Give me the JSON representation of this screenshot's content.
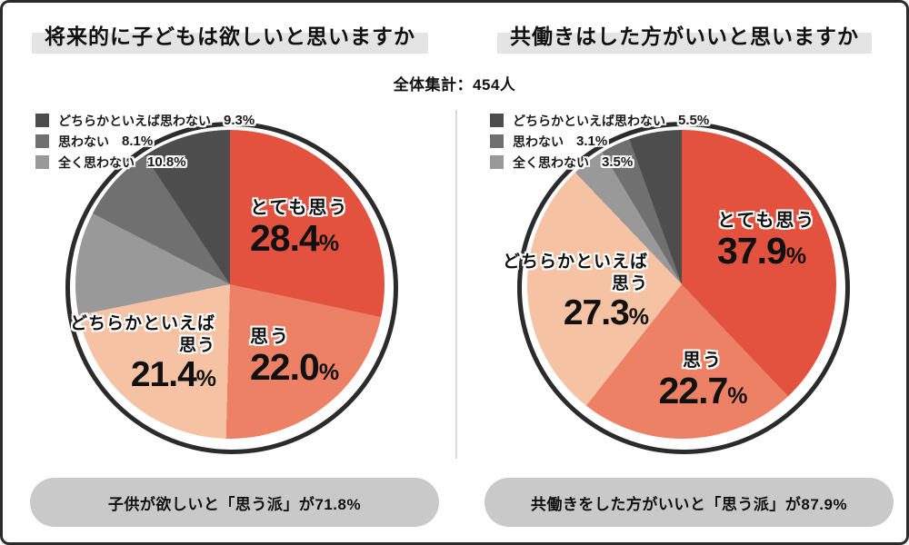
{
  "percent_sign": "%",
  "total_label": "全体集計：454人",
  "colors": {
    "red": "#e3523e",
    "salmon": "#ec8166",
    "peach": "#f5c2a3",
    "gray_light": "#999999",
    "gray_mid": "#707070",
    "gray_dark": "#4d4d4d",
    "banner_bg": "#c9c9c9",
    "title_highlight": "#e4e4e4",
    "frame_border": "#2b2b2b"
  },
  "panels": [
    {
      "title": "将来的に子どもは欲しいと思いますか",
      "legend": [
        {
          "label": "どちらかといえば思わない",
          "value": "9.3%",
          "color": "#4d4d4d"
        },
        {
          "label": "思わない",
          "value": "8.1%",
          "color": "#707070"
        },
        {
          "label": "全く思わない",
          "value": "10.8%",
          "color": "#999999"
        }
      ],
      "slice_labels": {
        "top": {
          "name": "とても思う",
          "num": "28.4"
        },
        "bottom": {
          "name": "思う",
          "num": "22.0"
        },
        "side": {
          "line1": "どちらかといえば",
          "line2": "思う",
          "num": "21.4"
        }
      },
      "banner": "子供が欲しいと「思う派」が71.8%"
    },
    {
      "title": "共働きはした方がいいと思いますか",
      "legend": [
        {
          "label": "どちらかといえば思わない",
          "value": "5.5%",
          "color": "#4d4d4d"
        },
        {
          "label": "思わない",
          "value": "3.1%",
          "color": "#707070"
        },
        {
          "label": "全く思わない",
          "value": "3.5%",
          "color": "#999999"
        }
      ],
      "slice_labels": {
        "top": {
          "name": "とても思う",
          "num": "37.9"
        },
        "bottom": {
          "name": "思う",
          "num": "22.7"
        },
        "side": {
          "line1": "どちらかといえば",
          "line2": "思う",
          "num": "27.3"
        }
      },
      "banner": "共働きをした方がいいと「思う派」が87.9%"
    }
  ],
  "chart_data": [
    {
      "type": "pie",
      "title": "将来的に子どもは欲しいと思いますか",
      "subtitle": "全体集計：454人",
      "categories": [
        "とても思う",
        "思う",
        "どちらかといえば思う",
        "全く思わない",
        "思わない",
        "どちらかといえば思わない"
      ],
      "values": [
        28.4,
        22.0,
        21.4,
        10.8,
        8.1,
        9.3
      ],
      "colors": [
        "#e3523e",
        "#ec8166",
        "#f5c2a3",
        "#999999",
        "#707070",
        "#4d4d4d"
      ],
      "start_angle_deg": 0,
      "direction": "clockwise",
      "legend_position": "top-left",
      "annotation": "子供が欲しいと「思う派」が71.8%"
    },
    {
      "type": "pie",
      "title": "共働きはした方がいいと思いますか",
      "subtitle": "全体集計：454人",
      "categories": [
        "とても思う",
        "思う",
        "どちらかといえば思う",
        "全く思わない",
        "思わない",
        "どちらかといえば思わない"
      ],
      "values": [
        37.9,
        22.7,
        27.3,
        3.5,
        3.1,
        5.5
      ],
      "colors": [
        "#e3523e",
        "#ec8166",
        "#f5c2a3",
        "#999999",
        "#707070",
        "#4d4d4d"
      ],
      "start_angle_deg": 0,
      "direction": "clockwise",
      "legend_position": "top-left",
      "annotation": "共働きをした方がいいと「思う派」が87.9%"
    }
  ]
}
